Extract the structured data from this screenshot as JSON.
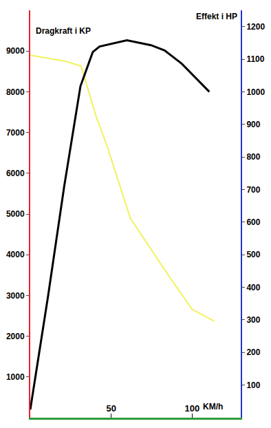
{
  "chart_data": {
    "type": "line",
    "x_label": "KM/h",
    "xlim": [
      0,
      130
    ],
    "xticks": [
      50,
      100
    ],
    "ylim": [
      0,
      10000
    ],
    "yticks": [
      1000,
      2000,
      3000,
      4000,
      5000,
      6000,
      7000,
      8000,
      9000
    ],
    "y2lim": [
      0,
      1250
    ],
    "y2ticks": [
      100,
      200,
      300,
      400,
      500,
      600,
      700,
      800,
      900,
      1000,
      1100,
      1200
    ],
    "grid": false,
    "series": [
      {
        "name": "Dragkraft i KP",
        "color": "#f2f25a",
        "x": [
          0,
          21.6,
          31.4,
          40.7,
          47,
          61.9,
          85.2,
          100,
          113.6
        ],
        "values": [
          8900,
          8750,
          8630,
          7390,
          6720,
          4890,
          3500,
          2660,
          2370
        ]
      },
      {
        "name": "Effekt i HP",
        "color": "#000000",
        "axis": "y2",
        "x": [
          0,
          11,
          21,
          31,
          38.6,
          42.8,
          59.7,
          74.6,
          83,
          93.6,
          110.6
        ],
        "values": [
          25,
          373,
          711,
          1017,
          1122,
          1139,
          1158,
          1143,
          1127,
          1086,
          1000
        ]
      }
    ]
  }
}
